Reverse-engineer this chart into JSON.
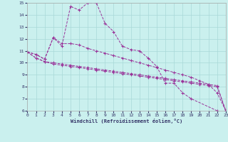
{
  "bg_color": "#caf0ee",
  "grid_color": "#a8d8d8",
  "line_color": "#993399",
  "xlim": [
    0,
    23
  ],
  "ylim": [
    6,
    15
  ],
  "yticks": [
    6,
    7,
    8,
    9,
    10,
    11,
    12,
    13,
    14,
    15
  ],
  "xticks": [
    0,
    1,
    2,
    3,
    4,
    5,
    6,
    7,
    8,
    9,
    10,
    11,
    12,
    13,
    14,
    15,
    16,
    17,
    18,
    19,
    20,
    21,
    22,
    23
  ],
  "xlabel": "Windchill (Refroidissement éolien,°C)",
  "series": [
    {
      "x": [
        0,
        1,
        2,
        3,
        4,
        5,
        6,
        7,
        8,
        9,
        10,
        11,
        12,
        13,
        14,
        15,
        16,
        17,
        18,
        19,
        22
      ],
      "y": [
        10.9,
        10.7,
        10.3,
        12.1,
        11.4,
        14.7,
        14.4,
        15.0,
        15.0,
        13.3,
        12.6,
        11.4,
        11.1,
        11.0,
        10.4,
        9.7,
        8.3,
        8.3,
        7.5,
        7.0,
        6.0
      ]
    },
    {
      "x": [
        0,
        1,
        2,
        3,
        4,
        5,
        6,
        7,
        8,
        9,
        10,
        11,
        12,
        13,
        14,
        15,
        16,
        17,
        18,
        19,
        20,
        21,
        22,
        23
      ],
      "y": [
        10.9,
        10.7,
        10.3,
        12.1,
        11.6,
        11.6,
        11.5,
        11.2,
        11.0,
        10.8,
        10.6,
        10.4,
        10.2,
        10.0,
        9.8,
        9.6,
        9.4,
        9.2,
        9.0,
        8.8,
        8.5,
        8.2,
        7.5,
        6.0
      ]
    },
    {
      "x": [
        0,
        1,
        2,
        3,
        4,
        5,
        6,
        7,
        8,
        9,
        10,
        11,
        12,
        13,
        14,
        15,
        16,
        17,
        18,
        19,
        20,
        21,
        22,
        23
      ],
      "y": [
        10.9,
        10.4,
        10.1,
        10.0,
        9.9,
        9.8,
        9.7,
        9.6,
        9.5,
        9.4,
        9.3,
        9.2,
        9.1,
        9.0,
        8.9,
        8.8,
        8.7,
        8.6,
        8.5,
        8.4,
        8.3,
        8.2,
        8.1,
        6.0
      ]
    },
    {
      "x": [
        0,
        1,
        2,
        3,
        4,
        5,
        6,
        7,
        8,
        9,
        10,
        11,
        12,
        13,
        14,
        15,
        16,
        17,
        18,
        19,
        20,
        21,
        22,
        23
      ],
      "y": [
        10.9,
        10.4,
        10.1,
        9.9,
        9.8,
        9.7,
        9.6,
        9.5,
        9.4,
        9.3,
        9.2,
        9.1,
        9.0,
        8.9,
        8.8,
        8.7,
        8.6,
        8.5,
        8.4,
        8.3,
        8.2,
        8.1,
        8.0,
        6.0
      ]
    }
  ]
}
